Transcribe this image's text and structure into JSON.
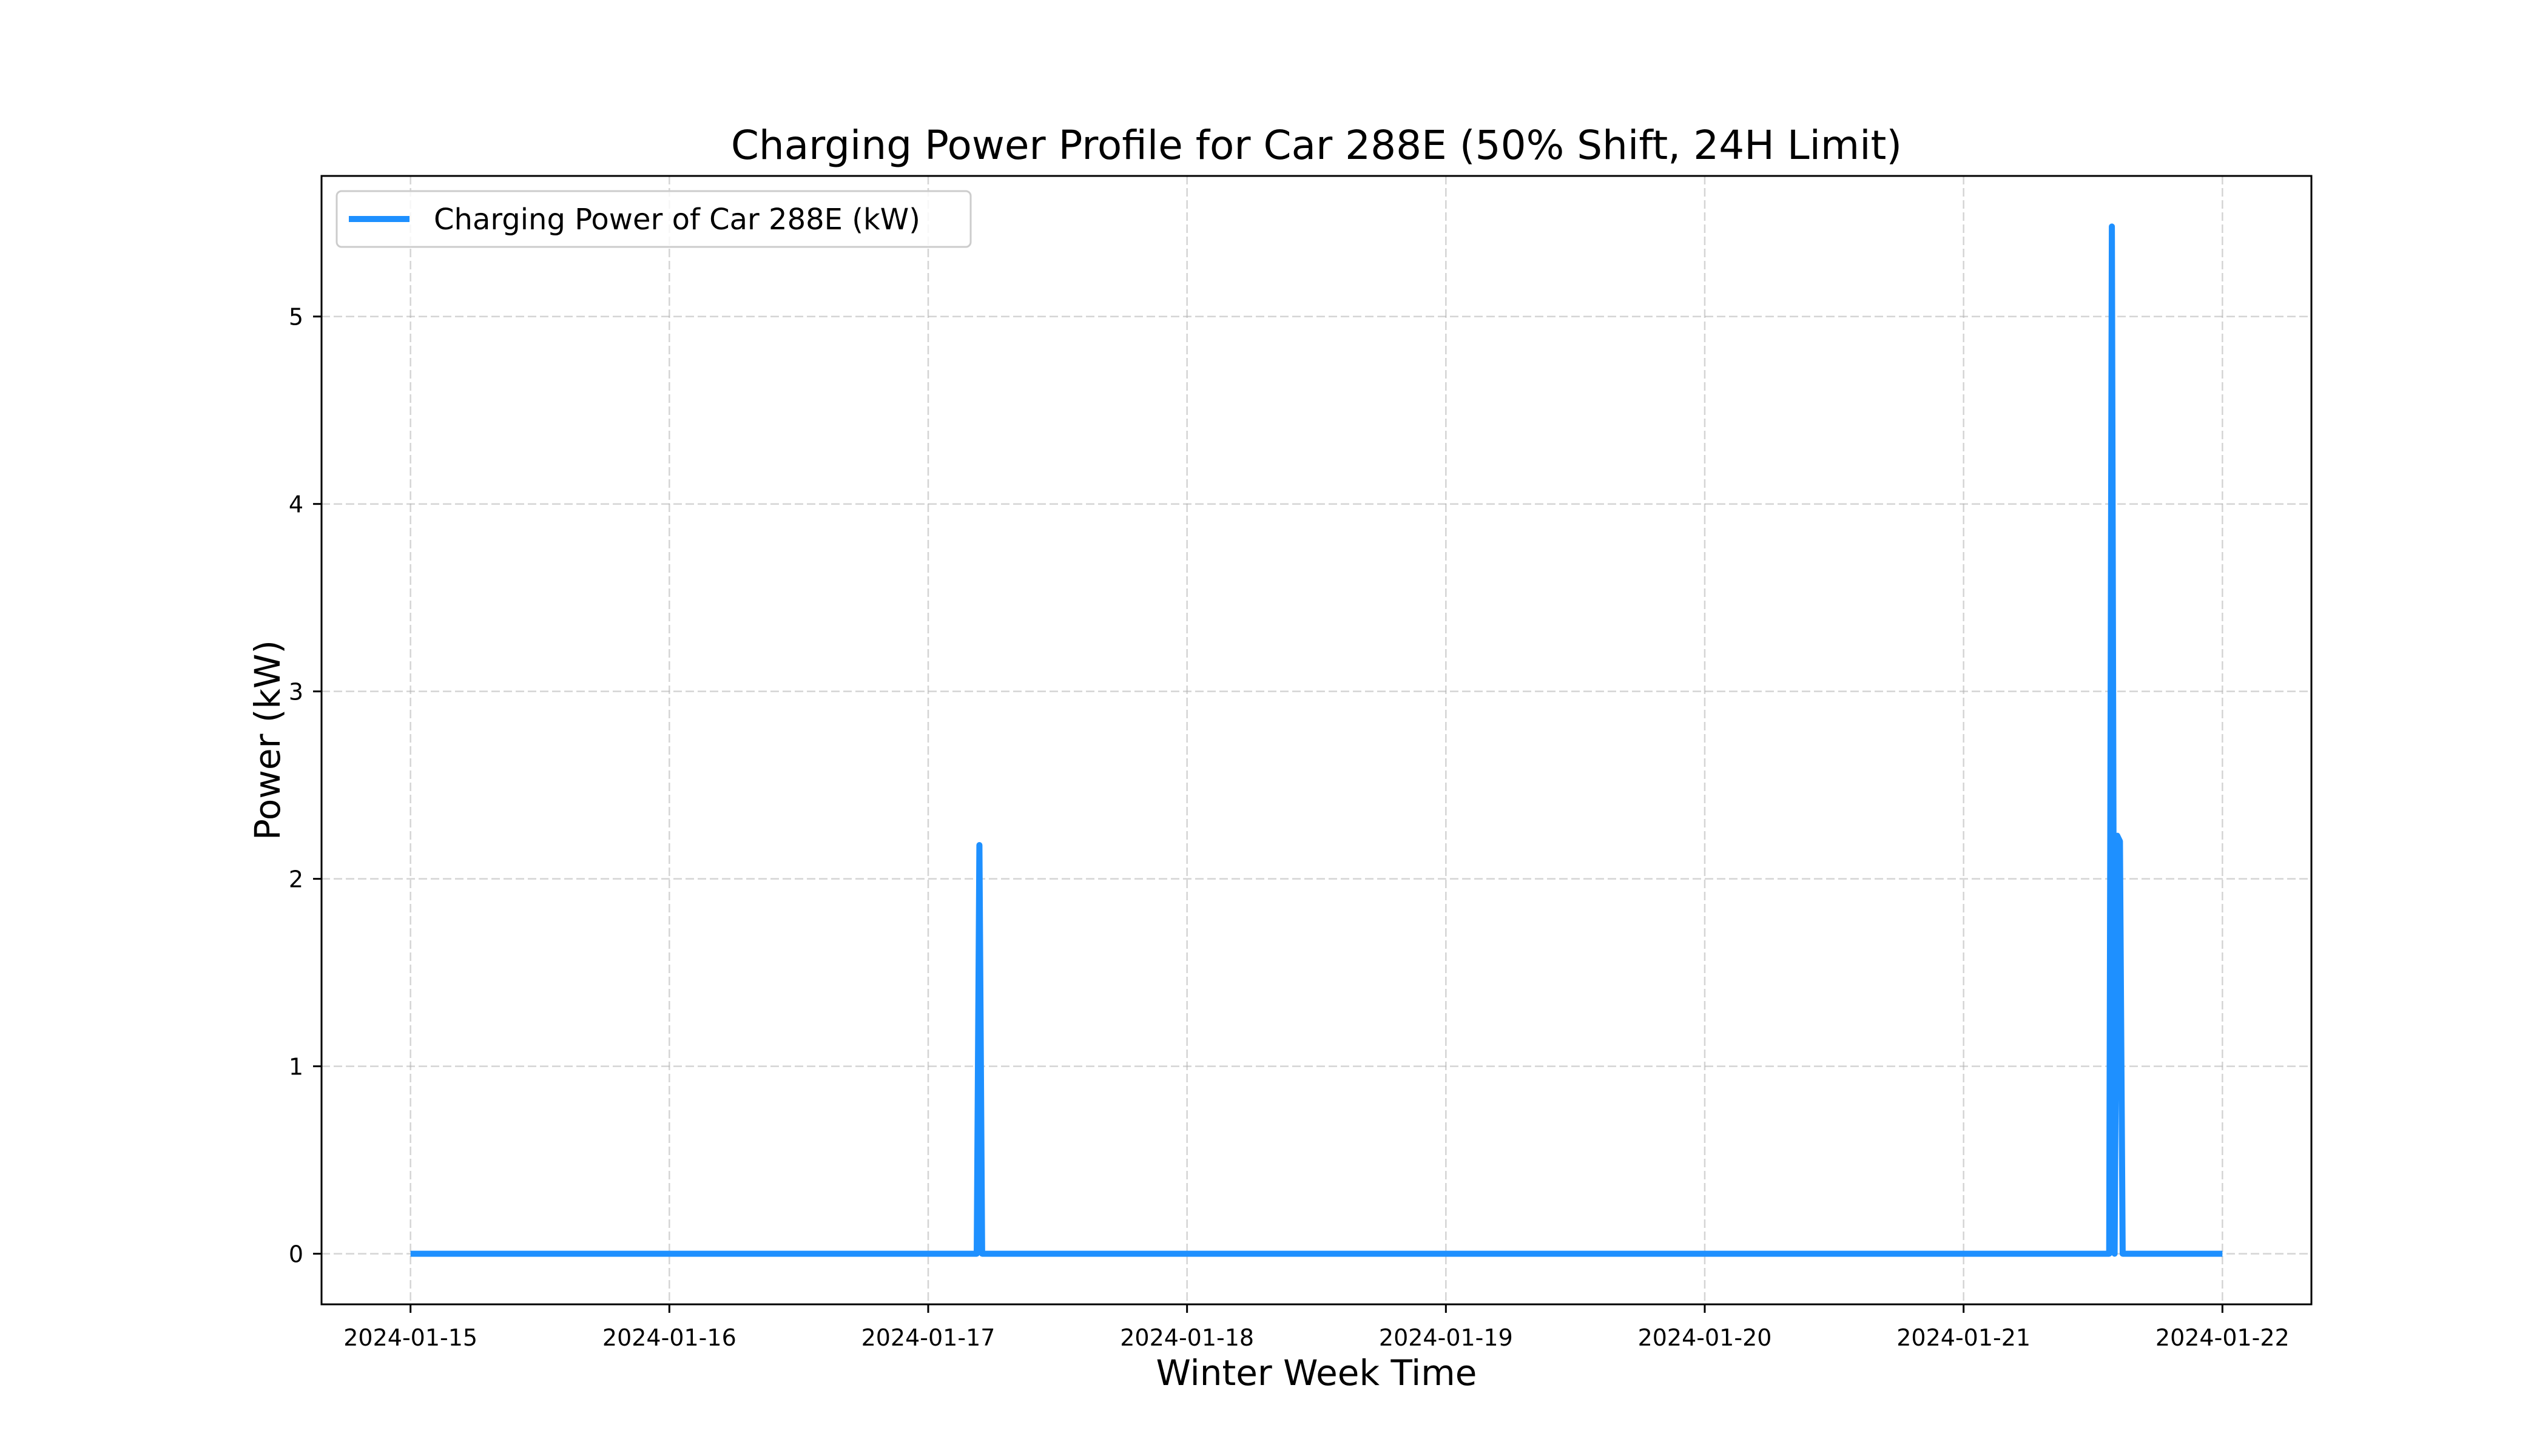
{
  "chart_data": {
    "type": "line",
    "title": "Charging Power Profile for Car 288E (50% Shift, 24H Limit)",
    "xlabel": "Winter Week Time",
    "ylabel": "Power (kW)",
    "x_ticks": [
      "2024-01-15",
      "2024-01-16",
      "2024-01-17",
      "2024-01-18",
      "2024-01-19",
      "2024-01-20",
      "2024-01-21",
      "2024-01-22"
    ],
    "y_ticks": [
      0,
      1,
      2,
      3,
      4,
      5
    ],
    "xlim": [
      "2024-01-14 15:45",
      "2024-01-22 08:15"
    ],
    "ylim": [
      -0.27,
      5.75
    ],
    "grid": true,
    "legend_position": "top-left",
    "series": [
      {
        "name": "Charging Power of Car 288E (kW)",
        "color": "#1e90ff",
        "points": [
          [
            "2024-01-15 00:00",
            0
          ],
          [
            "2024-01-17 04:30",
            0
          ],
          [
            "2024-01-17 04:45",
            2.18
          ],
          [
            "2024-01-17 05:00",
            0
          ],
          [
            "2024-01-21 13:30",
            0
          ],
          [
            "2024-01-21 13:45",
            5.48
          ],
          [
            "2024-01-21 14:00",
            0
          ],
          [
            "2024-01-21 14:15",
            2.23
          ],
          [
            "2024-01-21 14:30",
            2.2
          ],
          [
            "2024-01-21 14:45",
            0
          ],
          [
            "2024-01-22 00:00",
            0
          ]
        ]
      }
    ]
  }
}
